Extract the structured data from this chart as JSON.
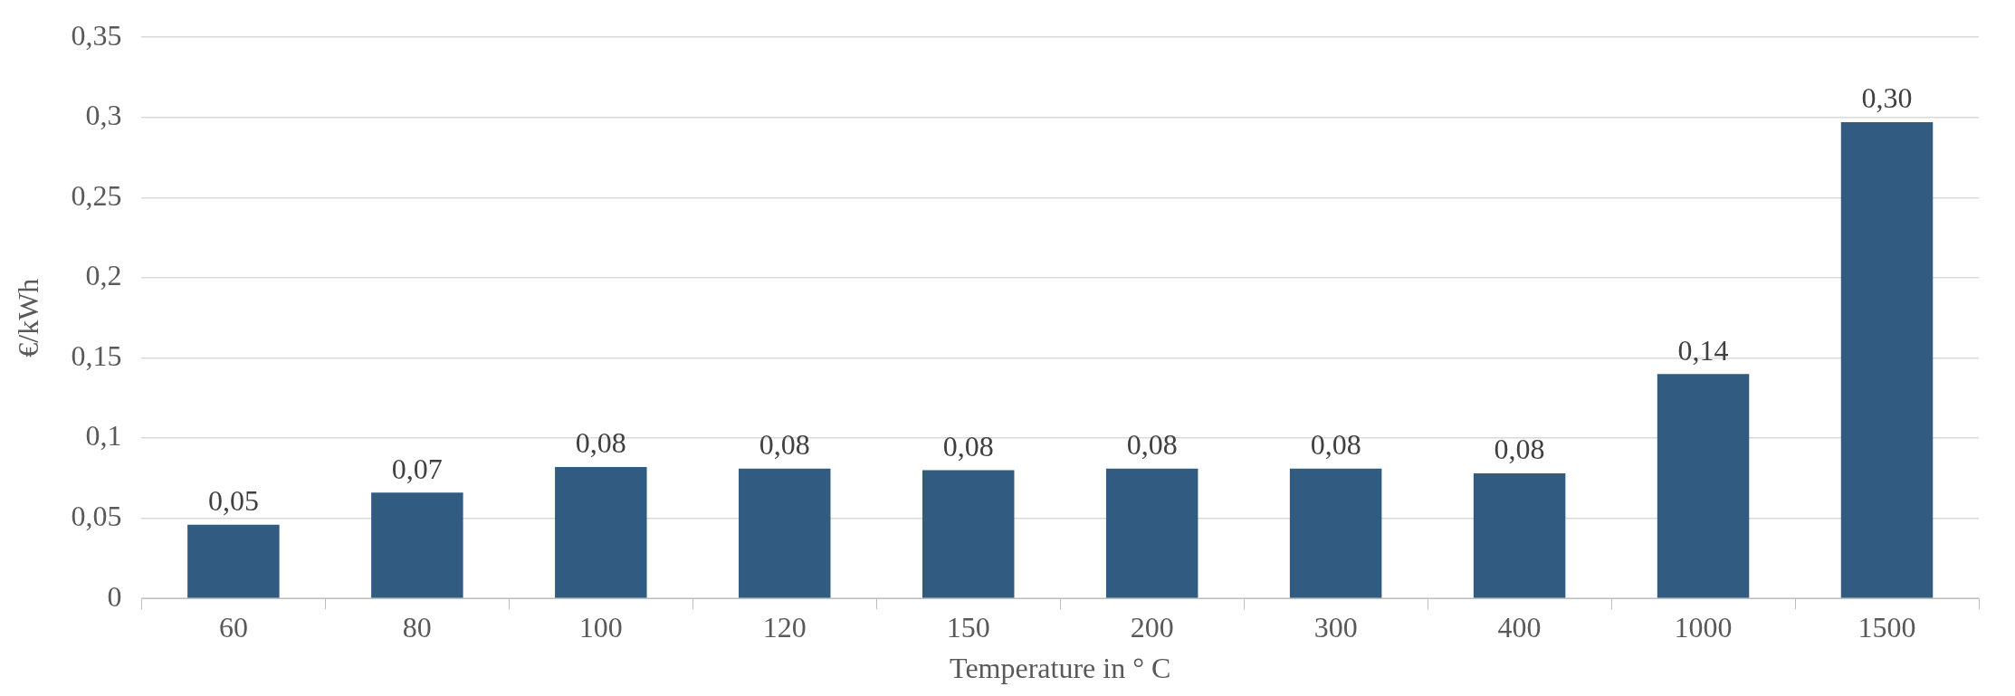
{
  "chart_data": {
    "type": "bar",
    "xlabel": "Temperature in ° C",
    "ylabel": "€/kWh",
    "categories": [
      "60",
      "80",
      "100",
      "120",
      "150",
      "200",
      "300",
      "400",
      "1000",
      "1500"
    ],
    "values": [
      0.046,
      0.066,
      0.082,
      0.081,
      0.08,
      0.081,
      0.081,
      0.078,
      0.14,
      0.297
    ],
    "value_labels": [
      "0,05",
      "0,07",
      "0,08",
      "0,08",
      "0,08",
      "0,08",
      "0,08",
      "0,08",
      "0,14",
      "0,30"
    ],
    "color": "#325b82",
    "ylim": [
      0,
      0.35
    ],
    "yticks": [
      0,
      {
        "value": 0.05,
        "label": "0,05"
      },
      {
        "value": 0.1,
        "label": "0,1"
      },
      {
        "value": 0.15,
        "label": "0,15"
      },
      {
        "value": 0.2,
        "label": "0,2"
      },
      {
        "value": 0.25,
        "label": "0,25"
      },
      {
        "value": 0.3,
        "label": "0,3"
      },
      {
        "value": 0.35,
        "label": "0,35"
      }
    ],
    "grid": "y",
    "legend": false
  }
}
